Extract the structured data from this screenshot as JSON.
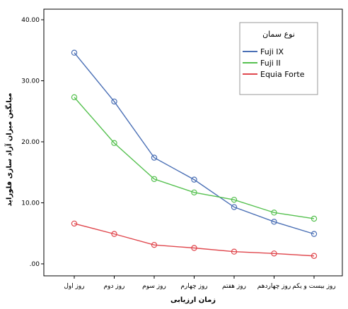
{
  "chart_data": {
    "type": "line",
    "categories": [
      "روز اول",
      "روز دوم",
      "روز سوم",
      "روز چهارم",
      "روز هفتم",
      "روز چهاردهم",
      "روز بیست و یکم"
    ],
    "series": [
      {
        "name": "Fuji IX",
        "color": "#4a6fb5",
        "values": [
          34.6,
          26.6,
          17.4,
          13.8,
          9.3,
          6.9,
          4.9
        ]
      },
      {
        "name": "Fuji II",
        "color": "#56c150",
        "values": [
          27.3,
          19.8,
          13.9,
          11.7,
          10.5,
          8.4,
          7.4
        ]
      },
      {
        "name": "Equia Forte",
        "color": "#e0484e",
        "values": [
          6.6,
          4.9,
          3.1,
          2.6,
          2.0,
          1.7,
          1.3
        ]
      }
    ],
    "xlabel": "زمان ارزیابی",
    "ylabel": "میانگین میزان آزاد سازی فلوراید",
    "ylim": [
      0,
      40
    ],
    "yticks": [
      0,
      10,
      20,
      30,
      40
    ],
    "ytick_labels": [
      ".00",
      "10.00",
      "20.00",
      "30.00",
      "40.00"
    ],
    "legend_title": "نوع سمان",
    "legend_position": "top-right",
    "grid": false
  }
}
